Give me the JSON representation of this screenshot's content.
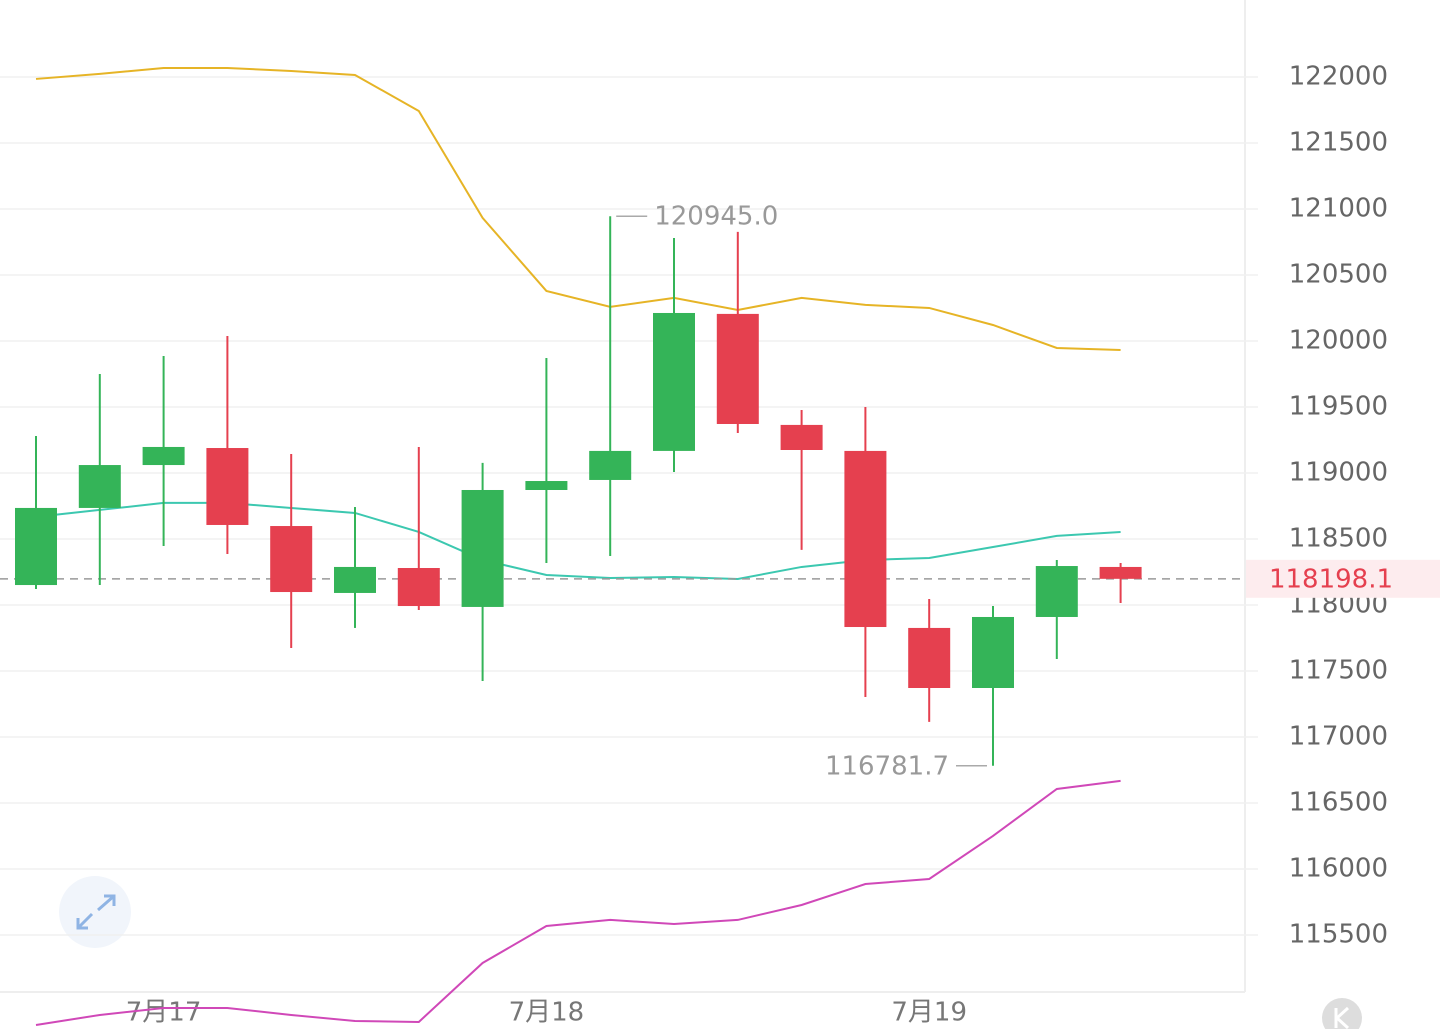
{
  "chart_data": {
    "type": "candlestick",
    "categories": [
      null,
      null,
      "7月17",
      null,
      null,
      null,
      null,
      null,
      "7月18",
      null,
      null,
      null,
      null,
      null,
      "7月19",
      null,
      null,
      null
    ],
    "open": [
      118151,
      118735,
      119060,
      119189,
      118598,
      118091,
      118280,
      117985,
      118871,
      118947,
      119167,
      120205,
      119364,
      119167,
      117826,
      117371,
      117909,
      118288
    ],
    "high": [
      119280,
      119750,
      119886,
      120038,
      119144,
      118742,
      119197,
      119076,
      119871,
      120945,
      120780,
      120826,
      119477,
      119500,
      118045,
      117992,
      118341,
      118318
    ],
    "low": [
      118121,
      118151,
      118447,
      118386,
      117674,
      117826,
      117962,
      117424,
      118318,
      118371,
      119007,
      119303,
      118417,
      117303,
      117114,
      116781.7,
      117591,
      118015
    ],
    "close": [
      118735,
      119060,
      119197,
      118606,
      118098,
      118288,
      117992,
      118871,
      118939,
      119167,
      120212,
      119371,
      119174,
      117833,
      117371,
      117909,
      118295,
      118198.1
    ],
    "up_color": "#34b458",
    "down_color": "#e5404f",
    "lines": [
      {
        "color": "#e6b426",
        "values": [
          121985,
          122023,
          122068,
          122068,
          122045,
          122015,
          121742,
          120932,
          120379,
          120258,
          120326,
          120235,
          120326,
          120273,
          120250,
          120121,
          119947,
          119932
        ]
      },
      {
        "color": "#3cc8b0",
        "values": [
          118667,
          118720,
          118773,
          118773,
          118735,
          118697,
          118553,
          118341,
          118227,
          118204,
          118212,
          118197,
          118288,
          118341,
          118356,
          118439,
          118523,
          118553
        ]
      },
      {
        "color": "#d048b8",
        "values": [
          114818,
          114894,
          114947,
          114947,
          114894,
          114848,
          114841,
          115288,
          115568,
          115614,
          115583,
          115614,
          115727,
          115886,
          115924,
          116250,
          116606,
          116667
        ]
      }
    ],
    "high_label": "120945.0",
    "low_label": "116781.7",
    "last_price": 118198.1,
    "ylim": [
      115068,
      122583
    ],
    "yticks": [
      115500,
      116000,
      116500,
      117000,
      117500,
      118000,
      118500,
      119000,
      119500,
      120000,
      120500,
      121000,
      121500,
      122000
    ],
    "grid": true
  }
}
